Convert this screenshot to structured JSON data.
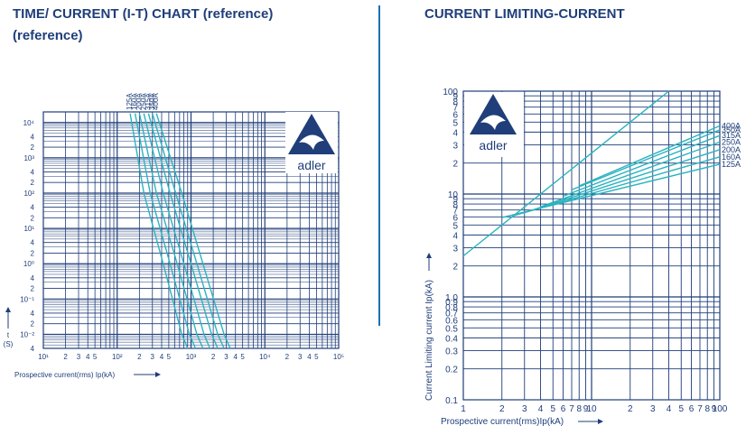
{
  "header": {
    "left_title": "TIME/ CURRENT (I-T) CHART (reference)",
    "left_title_cont": "(reference)",
    "right_title": "CURRENT LIMITING-CURRENT"
  },
  "logo": {
    "text": "adler",
    "icon": "eagle-triangle-logo-icon"
  },
  "colors": {
    "grid": "#1f3e7a",
    "curve": "#2bb3c0",
    "divider": "#1c6fb0"
  },
  "chart_data": [
    {
      "type": "line",
      "title": "TIME/ CURRENT (I-T) CHART (reference)",
      "xlabel": "Prospective current(rms) Ip(kA)",
      "ylabel": "t (S)",
      "x_scale": "log",
      "y_scale": "log",
      "xlim": [
        10,
        100000
      ],
      "ylim": [
        0.004,
        20000
      ],
      "x_tick_labels": [
        {
          "v": 10,
          "t": "10¹"
        },
        {
          "v": 20,
          "t": "2"
        },
        {
          "v": 30,
          "t": "3"
        },
        {
          "v": 40,
          "t": "4"
        },
        {
          "v": 50,
          "t": "5"
        },
        {
          "v": 100,
          "t": "10²"
        },
        {
          "v": 200,
          "t": "2"
        },
        {
          "v": 300,
          "t": "3"
        },
        {
          "v": 400,
          "t": "4"
        },
        {
          "v": 500,
          "t": "5"
        },
        {
          "v": 1000,
          "t": "10³"
        },
        {
          "v": 2000,
          "t": "2"
        },
        {
          "v": 3000,
          "t": "3"
        },
        {
          "v": 4000,
          "t": "4"
        },
        {
          "v": 5000,
          "t": "5"
        },
        {
          "v": 10000,
          "t": "10⁴"
        },
        {
          "v": 20000,
          "t": "2"
        },
        {
          "v": 30000,
          "t": "3"
        },
        {
          "v": 40000,
          "t": "4"
        },
        {
          "v": 50000,
          "t": "5"
        },
        {
          "v": 100000,
          "t": "10⁵"
        }
      ],
      "y_tick_labels": [
        {
          "v": 10000,
          "t": "10⁴"
        },
        {
          "v": 4000,
          "t": "4"
        },
        {
          "v": 2000,
          "t": "2"
        },
        {
          "v": 1000,
          "t": "10³"
        },
        {
          "v": 400,
          "t": "4"
        },
        {
          "v": 200,
          "t": "2"
        },
        {
          "v": 100,
          "t": "10²"
        },
        {
          "v": 40,
          "t": "4"
        },
        {
          "v": 20,
          "t": "2"
        },
        {
          "v": 10,
          "t": "10¹"
        },
        {
          "v": 4,
          "t": "4"
        },
        {
          "v": 2,
          "t": "2"
        },
        {
          "v": 1,
          "t": "10⁰"
        },
        {
          "v": 0.4,
          "t": "4"
        },
        {
          "v": 0.2,
          "t": "2"
        },
        {
          "v": 0.1,
          "t": "10⁻¹"
        },
        {
          "v": 0.04,
          "t": "4"
        },
        {
          "v": 0.02,
          "t": "2"
        },
        {
          "v": 0.01,
          "t": "10⁻²"
        },
        {
          "v": 0.004,
          "t": "4"
        }
      ],
      "series": [
        {
          "name": "125A",
          "points": [
            [
              150,
              18000
            ],
            [
              230,
              100
            ],
            [
              420,
              1
            ],
            [
              750,
              0.01
            ],
            [
              900,
              0.004
            ]
          ]
        },
        {
          "name": "160A",
          "points": [
            [
              175,
              18000
            ],
            [
              280,
              100
            ],
            [
              520,
              1
            ],
            [
              950,
              0.01
            ],
            [
              1150,
              0.004
            ]
          ]
        },
        {
          "name": "200A",
          "points": [
            [
              200,
              18000
            ],
            [
              340,
              100
            ],
            [
              650,
              1
            ],
            [
              1200,
              0.01
            ],
            [
              1450,
              0.004
            ]
          ]
        },
        {
          "name": "250A",
          "points": [
            [
              230,
              18000
            ],
            [
              420,
              100
            ],
            [
              800,
              1
            ],
            [
              1500,
              0.01
            ],
            [
              1800,
              0.004
            ]
          ]
        },
        {
          "name": "315A",
          "points": [
            [
              265,
              18000
            ],
            [
              520,
              100
            ],
            [
              1000,
              1
            ],
            [
              1900,
              0.01
            ],
            [
              2300,
              0.004
            ]
          ]
        },
        {
          "name": "350A",
          "points": [
            [
              300,
              18000
            ],
            [
              620,
              100
            ],
            [
              1200,
              1
            ],
            [
              2300,
              0.01
            ],
            [
              2800,
              0.004
            ]
          ]
        },
        {
          "name": "400A",
          "points": [
            [
              340,
              18000
            ],
            [
              750,
              100
            ],
            [
              1450,
              1
            ],
            [
              2800,
              0.01
            ],
            [
              3400,
              0.004
            ]
          ]
        }
      ]
    },
    {
      "type": "line",
      "title": "CURRENT LIMITING-CURRENT",
      "xlabel": "Prospective current(rms)Ip(kA)",
      "ylabel": "Current Limiting current Ip(kA)",
      "x_scale": "log",
      "y_scale": "log",
      "xlim": [
        1,
        100
      ],
      "ylim": [
        0.1,
        100
      ],
      "x_tick_labels": [
        {
          "v": 1,
          "t": "1"
        },
        {
          "v": 2,
          "t": "2"
        },
        {
          "v": 3,
          "t": "3"
        },
        {
          "v": 4,
          "t": "4"
        },
        {
          "v": 5,
          "t": "5"
        },
        {
          "v": 6,
          "t": "6"
        },
        {
          "v": 7,
          "t": "7"
        },
        {
          "v": 8,
          "t": "8"
        },
        {
          "v": 9,
          "t": "9"
        },
        {
          "v": 10,
          "t": "10"
        },
        {
          "v": 20,
          "t": "2"
        },
        {
          "v": 30,
          "t": "3"
        },
        {
          "v": 40,
          "t": "4"
        },
        {
          "v": 50,
          "t": "5"
        },
        {
          "v": 60,
          "t": "6"
        },
        {
          "v": 70,
          "t": "7"
        },
        {
          "v": 80,
          "t": "8"
        },
        {
          "v": 90,
          "t": "9"
        },
        {
          "v": 100,
          "t": "100"
        }
      ],
      "y_tick_labels": [
        {
          "v": 100,
          "t": "100"
        },
        {
          "v": 90,
          "t": "9"
        },
        {
          "v": 80,
          "t": "8"
        },
        {
          "v": 70,
          "t": "7"
        },
        {
          "v": 60,
          "t": "6"
        },
        {
          "v": 50,
          "t": "5"
        },
        {
          "v": 40,
          "t": "4"
        },
        {
          "v": 30,
          "t": "3"
        },
        {
          "v": 20,
          "t": "2"
        },
        {
          "v": 10,
          "t": "10"
        },
        {
          "v": 9,
          "t": "9"
        },
        {
          "v": 8,
          "t": "8"
        },
        {
          "v": 7,
          "t": "7"
        },
        {
          "v": 6,
          "t": "6"
        },
        {
          "v": 5,
          "t": "5"
        },
        {
          "v": 4,
          "t": "4"
        },
        {
          "v": 3,
          "t": "3"
        },
        {
          "v": 2,
          "t": "2"
        },
        {
          "v": 1,
          "t": "1.0"
        },
        {
          "v": 0.9,
          "t": "0.9"
        },
        {
          "v": 0.8,
          "t": "0.8"
        },
        {
          "v": 0.7,
          "t": "0.7"
        },
        {
          "v": 0.6,
          "t": "0.6"
        },
        {
          "v": 0.5,
          "t": "0.5"
        },
        {
          "v": 0.4,
          "t": "0.4"
        },
        {
          "v": 0.3,
          "t": "0.3"
        },
        {
          "v": 0.2,
          "t": "0.2"
        },
        {
          "v": 0.1,
          "t": "0.1"
        }
      ],
      "reference_line": {
        "points": [
          [
            1,
            2.5
          ],
          [
            40,
            100
          ]
        ]
      },
      "series": [
        {
          "name": "400A",
          "points": [
            [
              8,
              12
            ],
            [
              100,
              46
            ]
          ]
        },
        {
          "name": "350A",
          "points": [
            [
              7,
              11
            ],
            [
              100,
              42
            ]
          ]
        },
        {
          "name": "315A",
          "points": [
            [
              6,
              9.5
            ],
            [
              100,
              37
            ]
          ]
        },
        {
          "name": "250A",
          "points": [
            [
              4,
              7.5
            ],
            [
              100,
              32
            ]
          ]
        },
        {
          "name": "200A",
          "points": [
            [
              3,
              6.6
            ],
            [
              100,
              27
            ]
          ]
        },
        {
          "name": "160A",
          "points": [
            [
              2.4,
              6.1
            ],
            [
              100,
              23
            ]
          ]
        },
        {
          "name": "125A",
          "points": [
            [
              2,
              5.9
            ],
            [
              100,
              19.5
            ]
          ]
        }
      ]
    }
  ]
}
